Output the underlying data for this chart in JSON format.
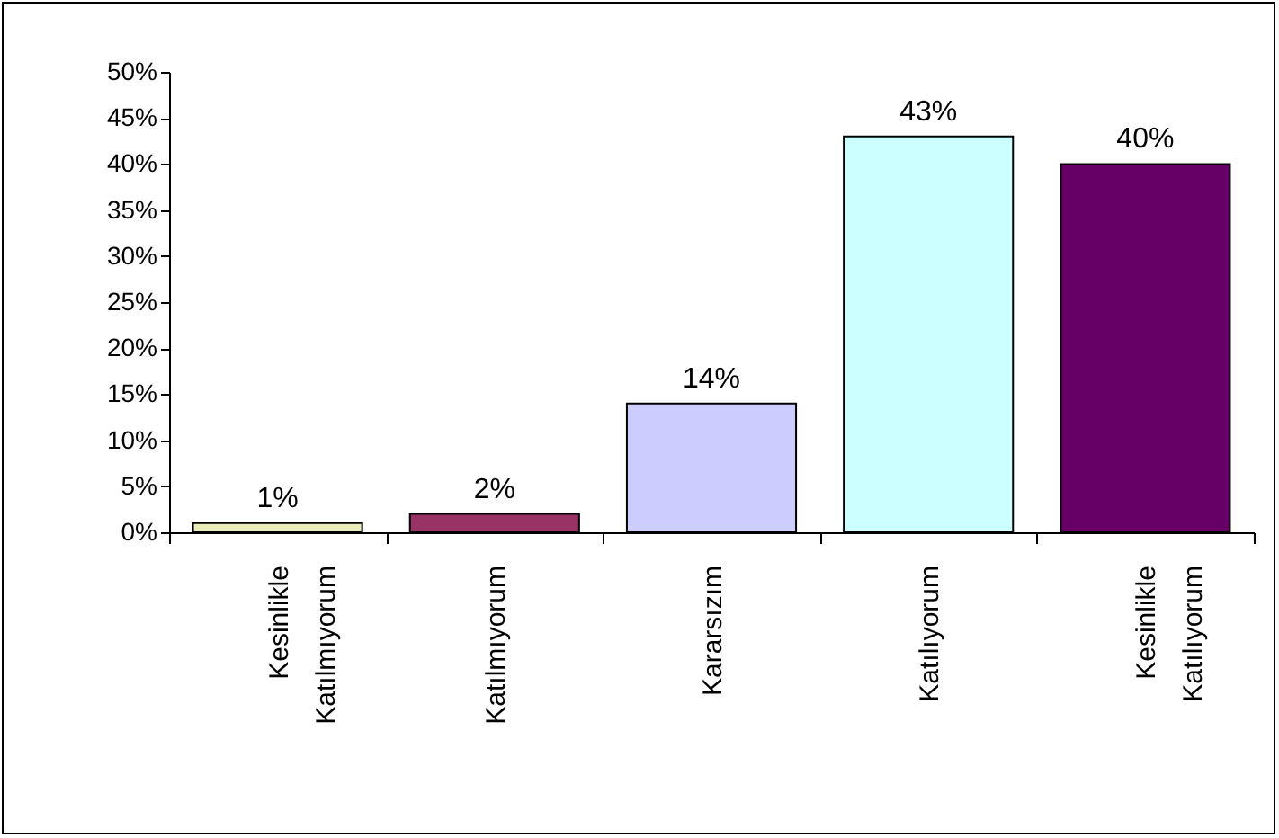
{
  "chart_data": {
    "type": "bar",
    "categories": [
      "Kesinlikle Katılmıyorum",
      "Katılmıyorum",
      "Kararsızım",
      "Katılıyorum",
      "Kesinlikle Katılıyorum"
    ],
    "values": [
      1,
      2,
      14,
      43,
      40
    ],
    "colors": [
      "#e8ecb8",
      "#993366",
      "#ccccff",
      "#ccffff",
      "#660066"
    ],
    "value_labels": [
      "1%",
      "2%",
      "14%",
      "43%",
      "40%"
    ],
    "ylim": [
      0,
      50
    ],
    "yticks": [
      {
        "value": 0,
        "label": "0%"
      },
      {
        "value": 5,
        "label": "5%"
      },
      {
        "value": 10,
        "label": "10%"
      },
      {
        "value": 15,
        "label": "15%"
      },
      {
        "value": 20,
        "label": "20%"
      },
      {
        "value": 25,
        "label": "25%"
      },
      {
        "value": 30,
        "label": "30%"
      },
      {
        "value": 35,
        "label": "35%"
      },
      {
        "value": 40,
        "label": "40%"
      },
      {
        "value": 45,
        "label": "45%"
      },
      {
        "value": 50,
        "label": "50%"
      }
    ],
    "grid": false,
    "legend": false
  }
}
